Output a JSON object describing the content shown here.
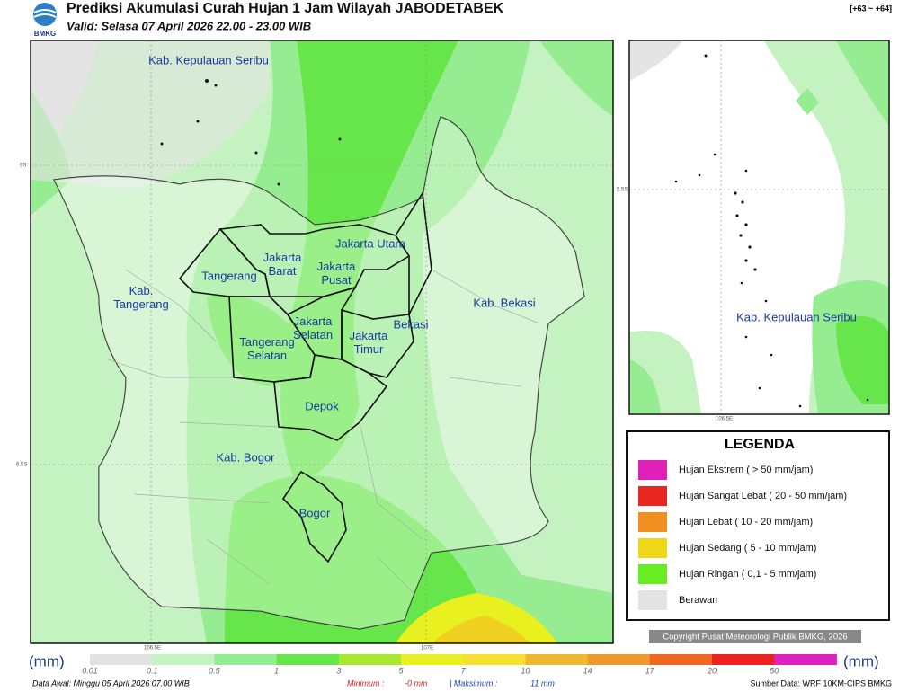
{
  "header": {
    "title": "Prediksi Akumulasi Curah Hujan 1 Jam Wilayah JABODETABEK",
    "subtitle": "Valid: Selasa 07 April 2026 22.00 - 23.00 WIB",
    "logo": "BMKG",
    "code": "[+63 ~ +64]"
  },
  "map": {
    "labels": [
      [
        "Kab. Kepulauan Seribu"
      ],
      [
        "Jakarta Utara"
      ],
      [
        "Jakarta",
        "Barat"
      ],
      [
        "Jakarta",
        "Pusat"
      ],
      [
        "Tangerang"
      ],
      [
        "Kab.",
        "Tangerang"
      ],
      [
        "Kab. Bekasi"
      ],
      [
        "Bekasi"
      ],
      [
        "Jakarta",
        "Selatan"
      ],
      [
        "Jakarta",
        "Timur"
      ],
      [
        "Tangerang",
        "Selatan"
      ],
      [
        "Depok"
      ],
      [
        "Kab. Bogor"
      ],
      [
        "Bogor"
      ]
    ],
    "coords": [
      "6S",
      "6.5S",
      "106.5E",
      "107E"
    ]
  },
  "inset": {
    "label": "Kab. Kepulauan Seribu",
    "coords": [
      "5.5S",
      "106.5E"
    ]
  },
  "legend": {
    "title": "LEGENDA",
    "items": [
      {
        "label": "Hujan Ekstrem ( > 50 mm/jam)",
        "color": "#e020b8"
      },
      {
        "label": "Hujan Sangat Lebat ( 20 - 50 mm/jam)",
        "color": "#e82820"
      },
      {
        "label": "Hujan Lebat ( 10 - 20 mm/jam)",
        "color": "#f09020"
      },
      {
        "label": "Hujan Sedang ( 5 - 10 mm/jam)",
        "color": "#f0d818"
      },
      {
        "label": "Hujan Ringan ( 0,1 - 5 mm/jam)",
        "color": "#66ee22"
      },
      {
        "label": "Berawan",
        "color": "#e4e4e4"
      }
    ]
  },
  "copyright": "Copyright Pusat Meteorologi Publik BMKG, 2026",
  "colorbar": {
    "unit": "(mm)",
    "labels": [
      "0.01",
      "0.1",
      "0.5",
      "1",
      "3",
      "5",
      "7",
      "10",
      "14",
      "17",
      "20",
      "50"
    ],
    "colors": [
      "#e2e2e2",
      "#c4f2c0",
      "#96ec90",
      "#66e64a",
      "#a8e830",
      "#e8f020",
      "#f8e030",
      "#f0b830",
      "#f09830",
      "#f06820",
      "#ee2020",
      "#e020c0"
    ]
  },
  "footer": {
    "start": "Data Awal: Minggu 05 April 2026 07.00 WIB",
    "min_label": "Minimum :",
    "min": "-0 mm",
    "max_label": "| Maksimum :",
    "max": "11 mm",
    "source": "Sumber Data: WRF 10KM-CIPS BMKG"
  }
}
